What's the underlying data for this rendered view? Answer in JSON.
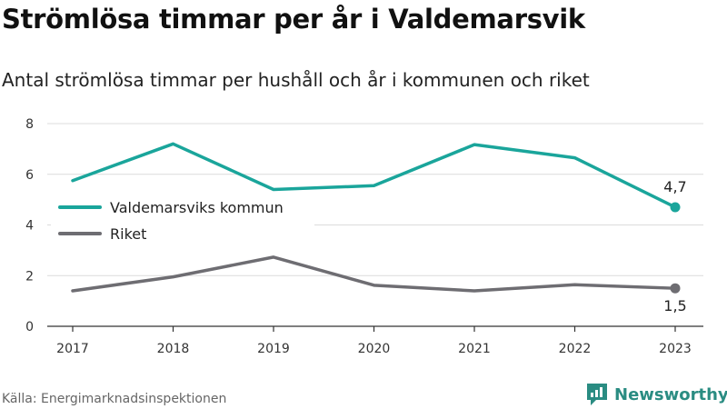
{
  "chart_data": {
    "type": "line",
    "title": "Strömlösa timmar per år i Valdemarsvik",
    "subtitle": "Antal strömlösa timmar per hushåll och år i kommunen och riket",
    "x": [
      "2017",
      "2018",
      "2019",
      "2020",
      "2021",
      "2022",
      "2023"
    ],
    "yticks": [
      "0",
      "2",
      "4",
      "6",
      "8"
    ],
    "ylim": [
      0,
      8
    ],
    "grid": true,
    "legend_position": "left",
    "series": [
      {
        "name": "Valdemarsviks kommun",
        "color": "#1aa59b",
        "values": [
          5.75,
          7.2,
          5.4,
          5.55,
          7.17,
          6.65,
          4.7
        ],
        "end_label": "4,7"
      },
      {
        "name": "Riket",
        "color": "#6e6d72",
        "values": [
          1.4,
          1.95,
          2.73,
          1.62,
          1.4,
          1.64,
          1.5
        ],
        "end_label": "1,5"
      }
    ]
  },
  "source": "Källa: Energimarknadsinspektionen",
  "brand": {
    "name": "Newsworthy",
    "icon": "newsworthy-logo-icon",
    "color": "#2a8c82"
  }
}
